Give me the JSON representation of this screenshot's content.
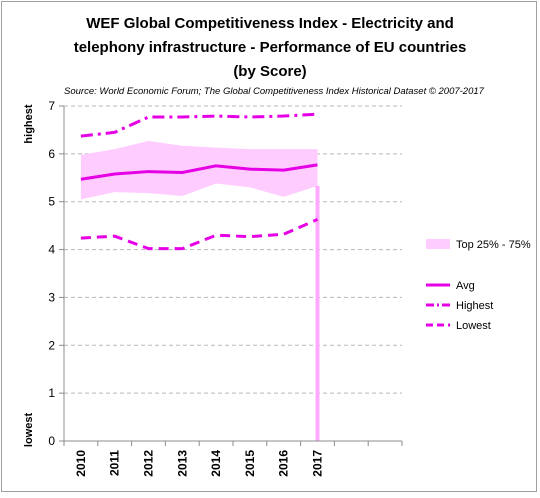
{
  "chart_data": {
    "type": "line",
    "title_lines": [
      "WEF Global Competitiveness Index - Electricity and",
      "telephony infrastructure - Performance of EU countries",
      "(by  Score)"
    ],
    "subtitle": "Source: World Economic Forum; The Global Competitiveness Index Historical Dataset © 2007-2017",
    "y_side_labels": {
      "top": "highest",
      "bottom": "lowest"
    },
    "categories": [
      "2010",
      "2011",
      "2012",
      "2013",
      "2014",
      "2015",
      "2016",
      "2017"
    ],
    "ylim": [
      0,
      7
    ],
    "yticks": [
      "0",
      "1",
      "2",
      "3",
      "4",
      "5",
      "6",
      "7"
    ],
    "grid": "horizontal dashed",
    "legend_position": "right",
    "band": {
      "name": "Top 25% - 75%",
      "color": "#ffccff",
      "upper": [
        5.98,
        6.1,
        6.27,
        6.17,
        6.13,
        6.1,
        6.1,
        6.1
      ],
      "lower": [
        5.05,
        5.2,
        5.18,
        5.12,
        5.38,
        5.3,
        5.1,
        5.33
      ]
    },
    "series": [
      {
        "name": "Avg",
        "color": "#e600e6",
        "style": "solid",
        "values": [
          5.47,
          5.58,
          5.63,
          5.61,
          5.75,
          5.68,
          5.66,
          5.77
        ]
      },
      {
        "name": "Highest",
        "color": "#e600e6",
        "style": "dashdot",
        "values": [
          6.37,
          6.45,
          6.77,
          6.77,
          6.79,
          6.77,
          6.79,
          6.83
        ]
      },
      {
        "name": "Lowest",
        "color": "#e600e6",
        "style": "dashed",
        "values": [
          4.24,
          4.28,
          4.02,
          4.02,
          4.3,
          4.27,
          4.32,
          4.63
        ]
      }
    ],
    "drop_line": {
      "category": "2017",
      "color": "#ffaaff"
    }
  }
}
